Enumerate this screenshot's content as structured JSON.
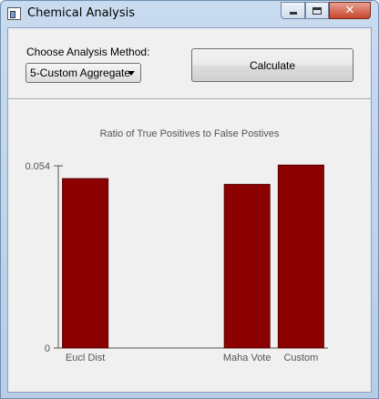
{
  "window": {
    "title": "Chemical Analysis",
    "close_glyph": "✕"
  },
  "controls": {
    "method_label": "Choose Analysis Method:",
    "method_value": "5-Custom Aggregate",
    "calculate_label": "Calculate"
  },
  "chart_data": {
    "type": "bar",
    "title": "Ratio of True Positives to False Postives",
    "categories": [
      "Eucl Dist",
      "",
      "",
      "Maha Vote",
      "Custom"
    ],
    "values": [
      0.0502,
      null,
      null,
      0.0485,
      0.0542
    ],
    "ytick_labels": [
      "0",
      "0.054"
    ],
    "ytick_values": [
      0,
      0.054
    ],
    "ylim": [
      0,
      0.054
    ],
    "bar_color": "#8b0000",
    "grid": false
  }
}
